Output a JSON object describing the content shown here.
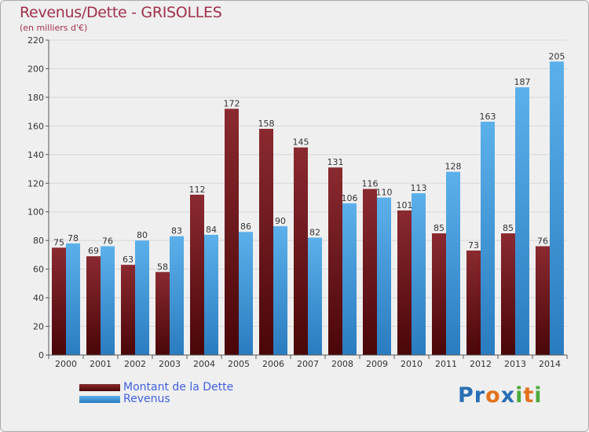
{
  "title": "Revenus/Dette - GRISOLLES",
  "subtitle": "(en milliers d'€)",
  "logo": {
    "text": "Proxiti",
    "letters": [
      {
        "ch": "P",
        "color": "#2a6fb4"
      },
      {
        "ch": "r",
        "color": "#2a6fb4"
      },
      {
        "ch": "o",
        "color": "#e2721b"
      },
      {
        "ch": "x",
        "color": "#2a6fb4"
      },
      {
        "ch": "i",
        "color": "#4caa3c"
      },
      {
        "ch": "t",
        "color": "#e2721b"
      },
      {
        "ch": "i",
        "color": "#4caa3c"
      }
    ]
  },
  "chart_data": {
    "type": "bar",
    "title": "Revenus/Dette - GRISOLLES",
    "subtitle": "(en milliers d'€)",
    "categories": [
      "2000",
      "2001",
      "2002",
      "2003",
      "2004",
      "2005",
      "2006",
      "2007",
      "2008",
      "2009",
      "2010",
      "2011",
      "2012",
      "2013",
      "2014"
    ],
    "series": [
      {
        "name": "Montant de la Dette",
        "color": "#7a1f24",
        "values": [
          75,
          69,
          63,
          58,
          112,
          172,
          158,
          145,
          131,
          116,
          101,
          85,
          73,
          85,
          76
        ]
      },
      {
        "name": "Revenus",
        "color": "#4aa0e0",
        "values": [
          78,
          76,
          80,
          83,
          84,
          86,
          90,
          82,
          106,
          110,
          113,
          128,
          163,
          187,
          205
        ]
      }
    ],
    "ylim": [
      0,
      220
    ],
    "yticks": [
      0,
      20,
      40,
      60,
      80,
      100,
      120,
      140,
      160,
      180,
      200,
      220
    ],
    "grid": true,
    "legend_position": "bottom-left"
  }
}
